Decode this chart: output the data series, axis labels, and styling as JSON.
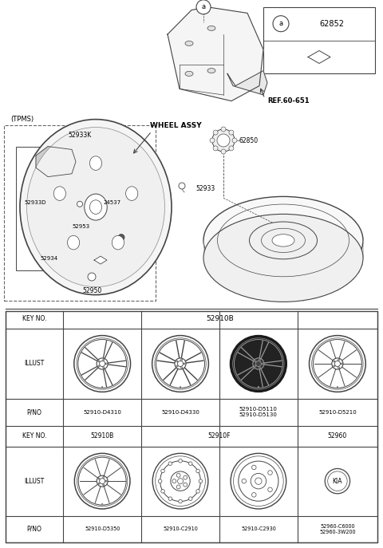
{
  "bg_color": "#ffffff",
  "line_color": "#444444",
  "text_color": "#000000",
  "table": {
    "col_labels": [
      "KEY NO.",
      "ILLUST",
      "P/NO",
      "KEY NO.",
      "ILLUST",
      "P/NO"
    ],
    "row1_key": "52910B",
    "row1_pno": [
      "52910-D4310",
      "52910-D4330",
      "52910-D5110\n52910-D5130",
      "52910-D5210"
    ],
    "row2_key_b": "52910B",
    "row2_key_f": "52910F",
    "row2_key_60": "52960",
    "row2_pno": [
      "52910-D5350",
      "52910-C2910",
      "52910-C2930",
      "52960-C6000\n52960-3W200"
    ]
  }
}
